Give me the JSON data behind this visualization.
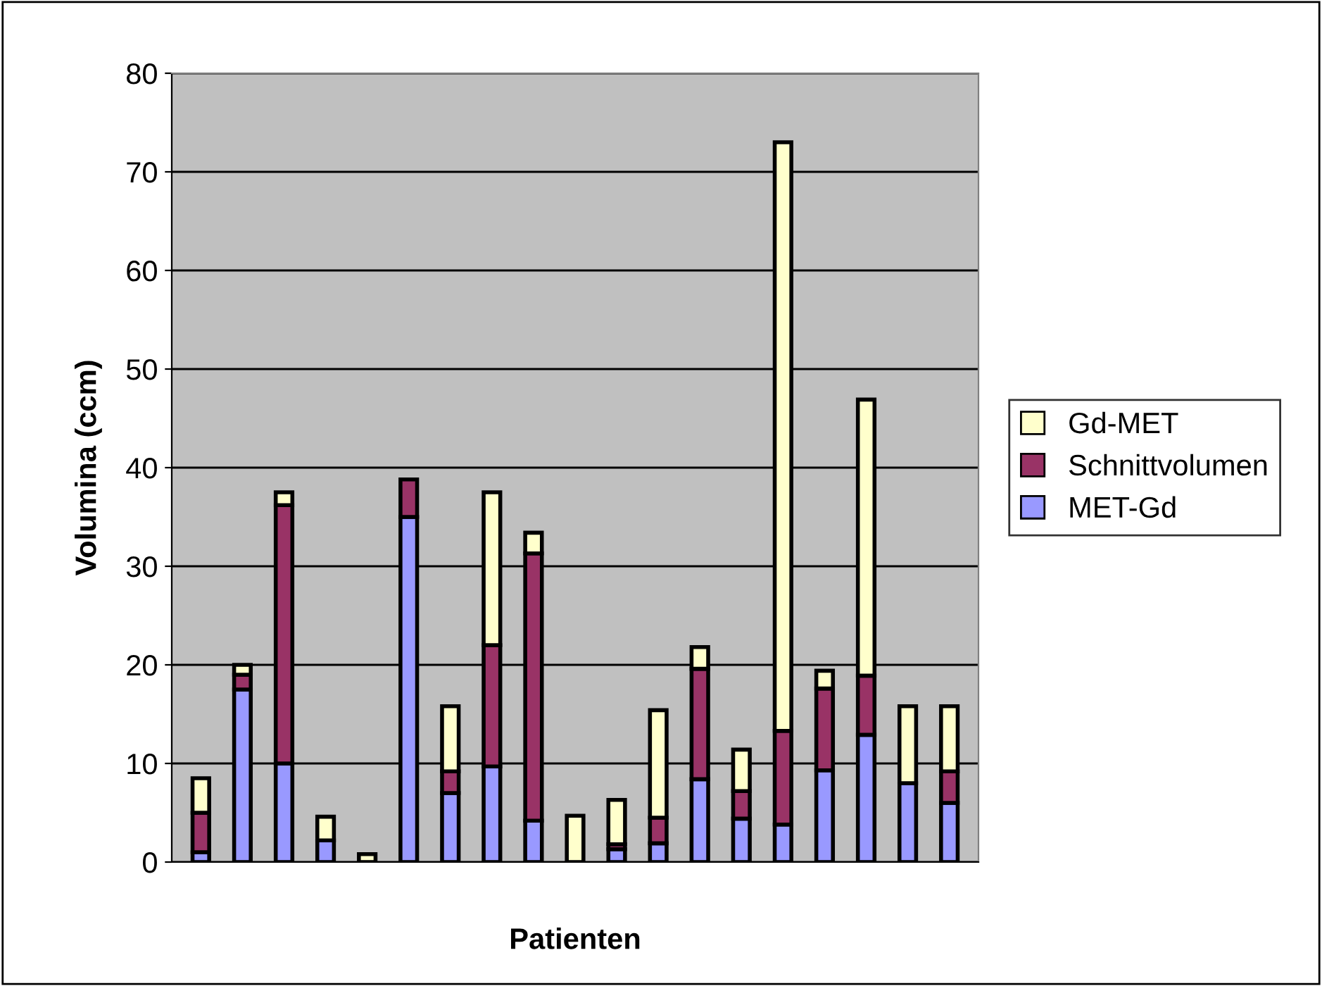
{
  "chart_data": {
    "type": "bar",
    "stacked": true,
    "xlabel": "Patienten",
    "ylabel": "Volumina (ccm)",
    "categories": [
      null,
      null,
      null,
      null,
      null,
      null,
      null,
      null,
      null,
      null,
      null,
      null,
      null,
      null,
      null,
      null,
      null,
      null,
      null
    ],
    "series": [
      {
        "name": "MET-Gd",
        "color": "#9999ff",
        "values": [
          1,
          17.5,
          10,
          2.2,
          null,
          35,
          7,
          9.7,
          4.2,
          null,
          1.3,
          1.9,
          8.4,
          4.4,
          3.8,
          9.3,
          12.9,
          8,
          6
        ]
      },
      {
        "name": "Schnittvolumen",
        "color": "#993366",
        "values": [
          4,
          1.5,
          26.2,
          null,
          null,
          3.8,
          2.2,
          12.3,
          27.1,
          null,
          0.5,
          2.6,
          11.2,
          2.8,
          9.5,
          8.3,
          6,
          null,
          3.2
        ]
      },
      {
        "name": "Gd-MET",
        "color": "#ffffcc",
        "values": [
          3.5,
          1,
          1.3,
          2.4,
          0.8,
          null,
          6.6,
          15.5,
          2.1,
          4.7,
          4.5,
          10.9,
          2.2,
          4.2,
          59.7,
          1.8,
          28,
          7.8,
          6.6
        ]
      }
    ],
    "ylim": [
      0,
      80
    ],
    "yticks": [
      0,
      10,
      20,
      30,
      40,
      50,
      60,
      70,
      80
    ],
    "grid": "y",
    "legend": "right"
  }
}
